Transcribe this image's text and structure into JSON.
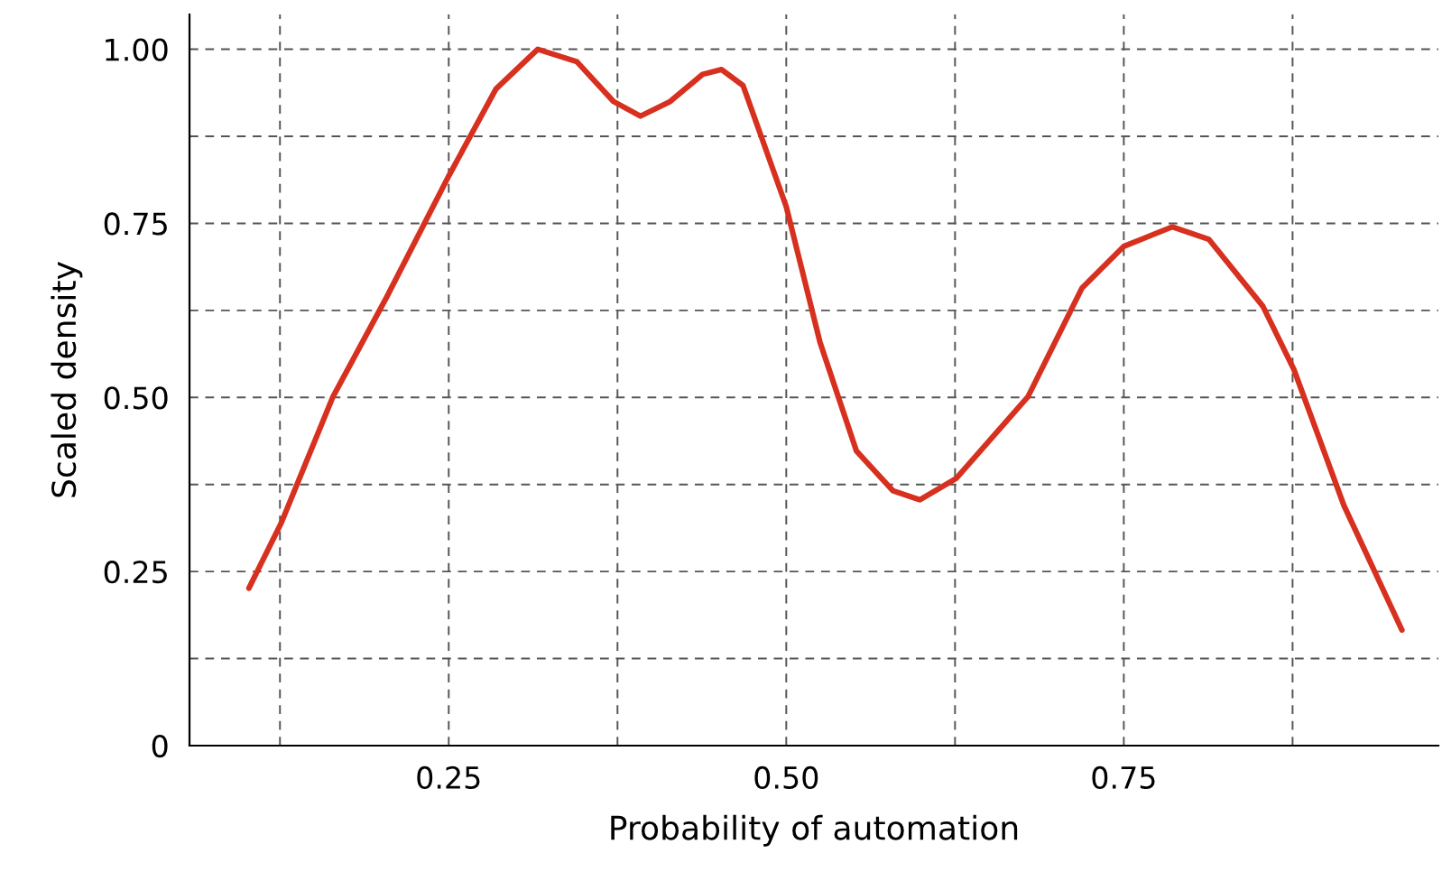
{
  "chart_data": {
    "type": "line",
    "xlabel": "Probability of automation",
    "ylabel": "Scaled density",
    "x": [
      0.102,
      0.126,
      0.164,
      0.204,
      0.25,
      0.285,
      0.316,
      0.345,
      0.372,
      0.392,
      0.414,
      0.438,
      0.452,
      0.468,
      0.5,
      0.525,
      0.552,
      0.579,
      0.599,
      0.626,
      0.679,
      0.719,
      0.75,
      0.786,
      0.813,
      0.853,
      0.876,
      0.913,
      0.956
    ],
    "series": [
      {
        "color": "#d7301f",
        "values": [
          0.226,
          0.32,
          0.5,
          0.644,
          0.818,
          0.943,
          1.0,
          0.982,
          0.925,
          0.904,
          0.925,
          0.964,
          0.971,
          0.948,
          0.774,
          0.579,
          0.423,
          0.366,
          0.353,
          0.384,
          0.501,
          0.657,
          0.717,
          0.745,
          0.727,
          0.631,
          0.54,
          0.345,
          0.166
        ]
      }
    ],
    "xlim": [
      0.058,
      0.983
    ],
    "ylim": [
      0,
      1.05
    ],
    "xticks": [
      {
        "value": 0.125,
        "label": null
      },
      {
        "value": 0.25,
        "label": "0.25"
      },
      {
        "value": 0.375,
        "label": null
      },
      {
        "value": 0.5,
        "label": "0.50"
      },
      {
        "value": 0.625,
        "label": null
      },
      {
        "value": 0.75,
        "label": "0.75"
      },
      {
        "value": 0.875,
        "label": null
      }
    ],
    "yticks": [
      0,
      {
        "value": 0.125,
        "label": null
      },
      {
        "value": 0.25,
        "label": "0.25"
      },
      {
        "value": 0.375,
        "label": null
      },
      {
        "value": 0.5,
        "label": "0.50"
      },
      {
        "value": 0.625,
        "label": null
      },
      {
        "value": 0.75,
        "label": "0.75"
      },
      {
        "value": 0.875,
        "label": null
      },
      {
        "value": 1.0,
        "label": "1.00"
      }
    ],
    "grid": true,
    "marker": "none",
    "line_style": "solid",
    "legend": false
  }
}
